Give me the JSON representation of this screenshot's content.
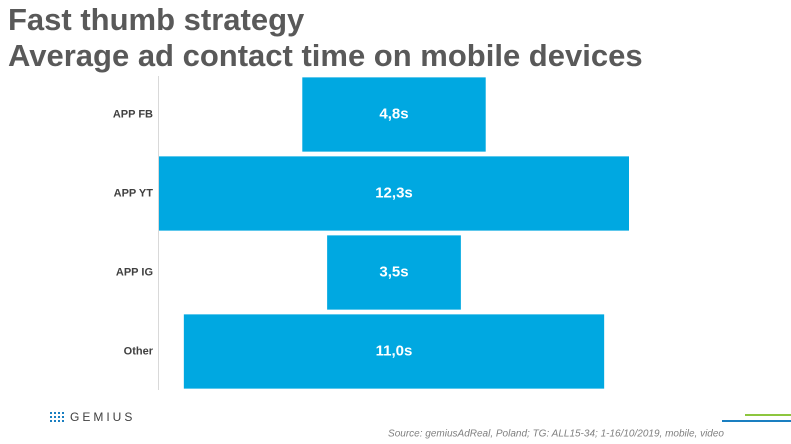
{
  "chart_data": {
    "type": "bar",
    "orientation": "horizontal",
    "align": "center",
    "title": "Fast thumb strategy",
    "subtitle": "Average ad contact time on mobile devices",
    "categories": [
      "APP FB",
      "APP YT",
      "APP IG",
      "Other"
    ],
    "values": [
      4.8,
      12.3,
      3.5,
      11.0
    ],
    "value_labels": [
      "4,8s",
      "12,3s",
      "3,5s",
      "11,0s"
    ],
    "color": "#00a8e1",
    "source": "Source: gemiusAdReal, Poland; TG: ALL15-34; 1-16/10/2019, mobile, video",
    "logo": "GEMIUS"
  }
}
